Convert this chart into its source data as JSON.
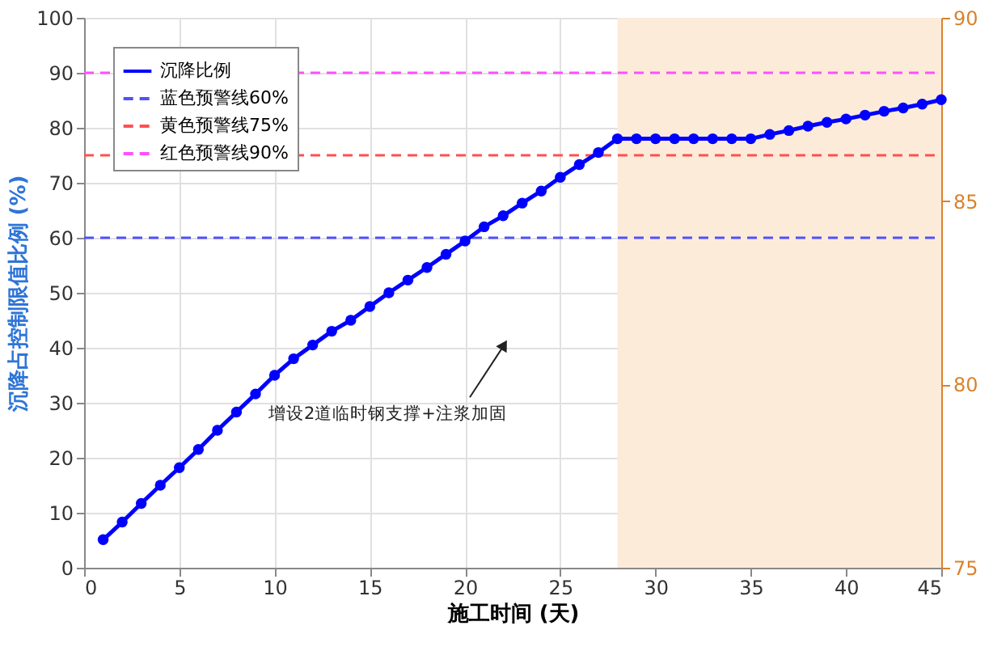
{
  "chart_data": {
    "type": "line",
    "xlabel": "施工时间 (天)",
    "ylabel": "沉降占控制限值比例 (%)",
    "x": [
      1,
      2,
      3,
      4,
      5,
      6,
      7,
      8,
      9,
      10,
      11,
      12,
      13,
      14,
      15,
      16,
      17,
      18,
      19,
      20,
      21,
      22,
      23,
      24,
      25,
      26,
      27,
      28,
      29,
      30,
      31,
      32,
      33,
      34,
      35,
      36,
      37,
      38,
      39,
      40,
      41,
      42,
      43,
      44,
      45
    ],
    "series": [
      {
        "name": "沉降比例",
        "color": "#0000ff",
        "values": [
          5.1,
          8.3,
          11.7,
          15,
          18.2,
          21.5,
          25,
          28.3,
          31.6,
          35,
          38,
          40.5,
          43,
          45,
          47.5,
          50,
          52.3,
          54.6,
          57,
          59.4,
          62,
          64,
          66.3,
          68.5,
          71,
          73.3,
          75.5,
          78,
          78,
          78,
          78,
          78,
          78,
          78,
          78,
          78.8,
          79.5,
          80.3,
          81,
          81.6,
          82.3,
          83,
          83.6,
          84.3,
          85.1
        ]
      }
    ],
    "ref_lines": [
      {
        "axis": "y",
        "value": 60,
        "label": "蓝色预警线60%",
        "color": "#5050ff",
        "line_style": "dashed"
      },
      {
        "axis": "y",
        "value": 75,
        "label": "黄色预警线75%",
        "color": "#ff5050",
        "line_style": "dashed"
      },
      {
        "axis": "y",
        "value": 90,
        "label": "红色预警线90%",
        "color": "#ff50ff",
        "line_style": "dashed"
      }
    ],
    "bands": [
      {
        "axis": "x",
        "from": 28,
        "to": 45,
        "color": "#fdebd9"
      }
    ],
    "annotations": [
      "增设2道临时钢支撑+注浆加固"
    ],
    "xlim": [
      0,
      45
    ],
    "xticks": [
      0,
      5,
      10,
      15,
      20,
      25,
      30,
      35,
      40,
      45
    ],
    "ylim": [
      0,
      100
    ],
    "yticks": [
      0,
      10,
      20,
      30,
      40,
      50,
      60,
      70,
      80,
      90,
      100
    ],
    "y2lim": [
      75,
      90
    ],
    "y2ticks": [
      75,
      80,
      85,
      90
    ],
    "grid": true,
    "legend": "top left",
    "marker": "circle",
    "line_style": "solid"
  }
}
